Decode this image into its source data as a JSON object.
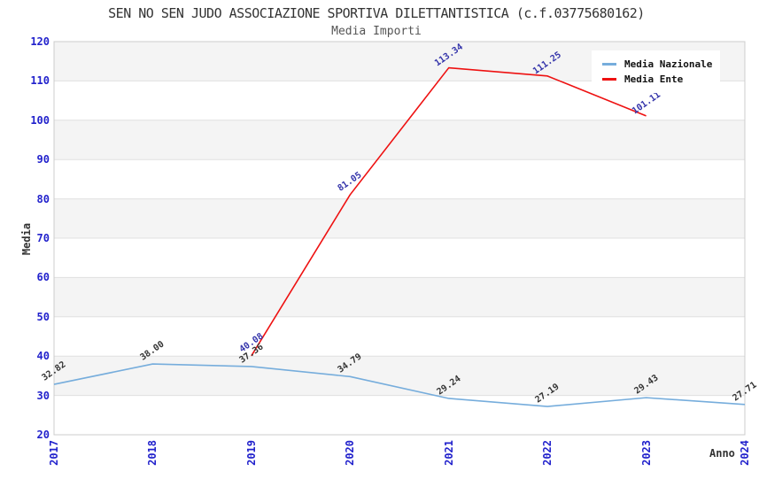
{
  "page": {
    "title": "SEN NO SEN JUDO ASSOCIAZIONE SPORTIVA DILETTANTISTICA (c.f.03775680162)",
    "subtitle": "Media Importi"
  },
  "colors": {
    "tick_label": "#2222CC",
    "grid_line": "#E0E0E0",
    "band_gray": "#F4F4F4",
    "band_white": "#FFFFFF",
    "plot_border": "#CCCCCC",
    "title_text": "#333333",
    "axis_title_text": "#333333"
  },
  "chart_data": {
    "type": "line",
    "title": "SEN NO SEN JUDO ASSOCIAZIONE SPORTIVA DILETTANTISTICA (c.f.03775680162)",
    "subtitle": "Media Importi",
    "xlabel": "Anno",
    "ylabel": "Media",
    "categories": [
      2017,
      2018,
      2019,
      2020,
      2021,
      2022,
      2023,
      2024
    ],
    "y_ticks": [
      20,
      30,
      40,
      50,
      60,
      70,
      80,
      90,
      100,
      110,
      120
    ],
    "ylim": [
      20,
      120
    ],
    "grid": true,
    "banded_background": true,
    "legend_position": "top-right",
    "series": [
      {
        "name": "Media Nazionale",
        "color": "#76ADDC",
        "label_color": "#333333",
        "x": [
          2017,
          2018,
          2019,
          2020,
          2021,
          2022,
          2023,
          2024
        ],
        "values": [
          32.82,
          38.0,
          37.36,
          34.79,
          29.24,
          27.19,
          29.43,
          27.71
        ],
        "labels": [
          "32.82",
          "38.00",
          "37.36",
          "34.79",
          "29.24",
          "27.19",
          "29.43",
          "27.71"
        ]
      },
      {
        "name": "Media Ente",
        "color": "#EE1111",
        "label_color": "#3333AA",
        "x": [
          2019,
          2020,
          2021,
          2022,
          2023
        ],
        "values": [
          40.08,
          81.05,
          113.34,
          111.25,
          101.11
        ],
        "labels": [
          "40.08",
          "81.05",
          "113.34",
          "111.25",
          "101.11"
        ]
      }
    ]
  }
}
